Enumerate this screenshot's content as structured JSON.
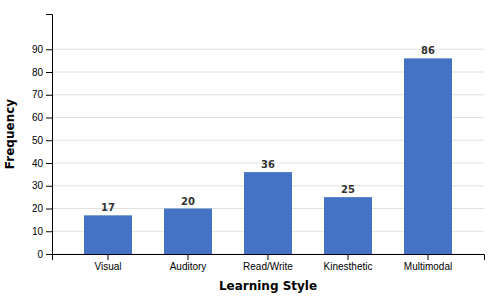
{
  "chart_data": {
    "type": "bar",
    "categories": [
      "Visual",
      "Auditory",
      "Read/Write",
      "Kinesthetic",
      "Multimodal"
    ],
    "values": [
      17,
      20,
      36,
      25,
      86
    ],
    "color": "#4472C4",
    "xlabel": "Learning Style",
    "ylabel": "Frequency",
    "ylim": [
      0,
      105.5
    ],
    "yticks": [
      0,
      10,
      20,
      30,
      40,
      50,
      60,
      70,
      80,
      90
    ],
    "grid": true,
    "data_labels": true
  }
}
